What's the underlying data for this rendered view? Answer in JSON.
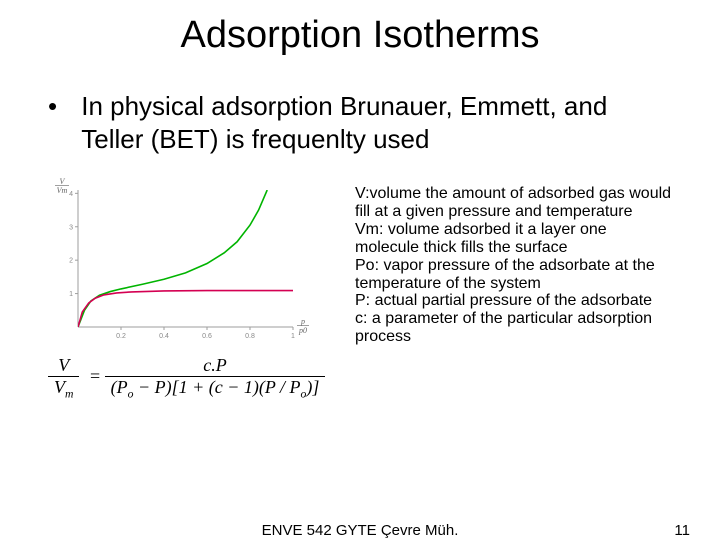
{
  "title": "Adsorption Isotherms",
  "bullet": "In physical adsorption Brunauer, Emmett, and Teller (BET) is frequenlty used",
  "definitions": "V:volume the amount of adsorbed gas would fill at a given pressure and temperature\nVm: volume adsorbed it a layer one molecule thick fills the surface\nPo:  vapor pressure of the adsorbate at the temperature of the system\nP: actual partial pressure of the adsorbate\nc: a parameter of the particular adsorption process",
  "equation": {
    "lhs_num": "V",
    "lhs_den": "V",
    "lhs_den_sub": "m",
    "rhs_num": "c.P",
    "rhs_den": "(P",
    "rhs_den_sub1": "o",
    "rhs_den_mid": " − P)[1 + (c − 1)(P / P",
    "rhs_den_sub2": "o",
    "rhs_den_end": ")]"
  },
  "chart": {
    "background": "#ffffff",
    "axis_color": "#9e9e9e",
    "grid_off": true,
    "xlim": [
      0,
      1.0
    ],
    "ylim": [
      0,
      4.1
    ],
    "xticks": [
      {
        "v": 0.2,
        "label": "0.2"
      },
      {
        "v": 0.4,
        "label": "0.4"
      },
      {
        "v": 0.6,
        "label": "0.6"
      },
      {
        "v": 0.8,
        "label": "0.8"
      },
      {
        "v": 1.0,
        "label": "1"
      }
    ],
    "yticks": [
      {
        "v": 1,
        "label": "1"
      },
      {
        "v": 2,
        "label": "2"
      },
      {
        "v": 3,
        "label": "3"
      },
      {
        "v": 4,
        "label": "4"
      }
    ],
    "y_axis_top_label_num": "V",
    "y_axis_top_label_den": "Vm",
    "x_axis_right_label_num": "p",
    "x_axis_right_label_den": "p0",
    "series": [
      {
        "name": "green-curve",
        "color": "#00b400",
        "width": 1.6,
        "points": [
          [
            0.0,
            0.0
          ],
          [
            0.03,
            0.5
          ],
          [
            0.06,
            0.78
          ],
          [
            0.1,
            0.95
          ],
          [
            0.15,
            1.06
          ],
          [
            0.2,
            1.14
          ],
          [
            0.3,
            1.28
          ],
          [
            0.4,
            1.43
          ],
          [
            0.5,
            1.62
          ],
          [
            0.6,
            1.9
          ],
          [
            0.68,
            2.22
          ],
          [
            0.74,
            2.55
          ],
          [
            0.8,
            3.05
          ],
          [
            0.84,
            3.5
          ],
          [
            0.88,
            4.1
          ]
        ]
      },
      {
        "name": "red-curve",
        "color": "#d40052",
        "width": 1.6,
        "points": [
          [
            0.0,
            0.0
          ],
          [
            0.02,
            0.45
          ],
          [
            0.05,
            0.72
          ],
          [
            0.08,
            0.86
          ],
          [
            0.12,
            0.96
          ],
          [
            0.18,
            1.02
          ],
          [
            0.25,
            1.05
          ],
          [
            0.4,
            1.08
          ],
          [
            0.6,
            1.09
          ],
          [
            0.8,
            1.09
          ],
          [
            1.0,
            1.09
          ]
        ]
      }
    ]
  },
  "footer_center": "ENVE 542   GYTE Çevre Müh.",
  "footer_page": "11"
}
